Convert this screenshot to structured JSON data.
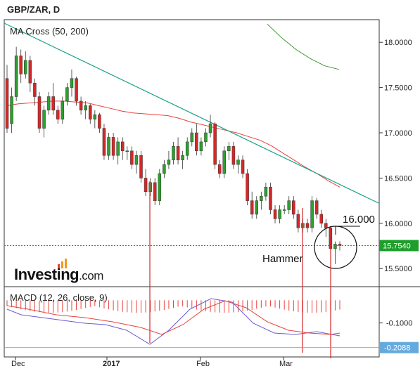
{
  "header": {
    "title": "GBP/ZAR, D"
  },
  "indicators": {
    "ma_label": "MA Cross (50, 200)",
    "macd_label": "MACD (12, 26, close, 9)"
  },
  "logo": {
    "brand": "Investing",
    "suffix": ".com"
  },
  "annotations": {
    "hammer": "Hammer",
    "level": "16.000"
  },
  "colors": {
    "up": "#2ca02c",
    "down": "#d62728",
    "ma50": "#e8423c",
    "ma200": "#3a9a2e",
    "trendline": "#1aa38a",
    "macd": "#6a5acd",
    "signal": "#e8423c",
    "price_tag": "#1e9e2a",
    "macd_tag": "#66aadd"
  },
  "chart_data": {
    "type": "candlestick",
    "symbol": "GBP/ZAR",
    "timeframe": "D",
    "price_axis": {
      "ticks": [
        "18.0000",
        "17.5000",
        "17.0000",
        "16.5000",
        "16.0000",
        "15.5000"
      ],
      "range": [
        15.3,
        18.25
      ]
    },
    "x_ticks": [
      "Dec",
      "2017",
      "Feb",
      "Mar"
    ],
    "last_price": "15.7540",
    "candles": [
      [
        17.6,
        17.75,
        17.0,
        17.05
      ],
      [
        17.1,
        17.5,
        17.0,
        17.4
      ],
      [
        17.4,
        17.95,
        17.35,
        17.85
      ],
      [
        17.85,
        17.92,
        17.55,
        17.65
      ],
      [
        17.65,
        17.9,
        17.6,
        17.8
      ],
      [
        17.8,
        17.85,
        17.45,
        17.55
      ],
      [
        17.55,
        17.6,
        17.3,
        17.4
      ],
      [
        17.4,
        17.45,
        17.0,
        17.05
      ],
      [
        17.05,
        17.3,
        16.95,
        17.25
      ],
      [
        17.25,
        17.45,
        17.2,
        17.4
      ],
      [
        17.4,
        17.55,
        17.2,
        17.25
      ],
      [
        17.25,
        17.3,
        17.1,
        17.15
      ],
      [
        17.15,
        17.4,
        17.1,
        17.35
      ],
      [
        17.35,
        17.55,
        17.3,
        17.5
      ],
      [
        17.5,
        17.7,
        17.4,
        17.6
      ],
      [
        17.6,
        17.62,
        17.3,
        17.35
      ],
      [
        17.35,
        17.4,
        17.2,
        17.25
      ],
      [
        17.25,
        17.35,
        17.15,
        17.3
      ],
      [
        17.3,
        17.32,
        17.1,
        17.15
      ],
      [
        17.15,
        17.25,
        17.05,
        17.2
      ],
      [
        17.2,
        17.22,
        17.0,
        17.05
      ],
      [
        17.05,
        17.1,
        16.7,
        16.75
      ],
      [
        16.75,
        17.0,
        16.7,
        16.95
      ],
      [
        16.95,
        17.0,
        16.7,
        16.75
      ],
      [
        16.75,
        16.95,
        16.65,
        16.9
      ],
      [
        16.9,
        16.95,
        16.7,
        16.8
      ],
      [
        16.8,
        16.85,
        16.7,
        16.8
      ],
      [
        16.8,
        16.85,
        16.6,
        16.65
      ],
      [
        16.65,
        16.8,
        16.55,
        16.75
      ],
      [
        16.75,
        16.8,
        16.45,
        16.5
      ],
      [
        16.5,
        16.6,
        16.3,
        16.35
      ],
      [
        16.35,
        16.5,
        16.3,
        16.45
      ],
      [
        16.45,
        16.5,
        16.2,
        16.25
      ],
      [
        16.25,
        16.6,
        16.2,
        16.55
      ],
      [
        16.55,
        16.7,
        16.5,
        16.65
      ],
      [
        16.65,
        16.8,
        16.6,
        16.7
      ],
      [
        16.7,
        16.9,
        16.65,
        16.85
      ],
      [
        16.85,
        16.95,
        16.65,
        16.7
      ],
      [
        16.7,
        16.8,
        16.6,
        16.75
      ],
      [
        16.75,
        16.95,
        16.7,
        16.9
      ],
      [
        16.9,
        17.05,
        16.85,
        17.0
      ],
      [
        17.0,
        17.1,
        16.75,
        16.8
      ],
      [
        16.8,
        16.95,
        16.75,
        16.9
      ],
      [
        16.9,
        17.05,
        16.85,
        17.0
      ],
      [
        17.0,
        17.2,
        16.95,
        17.1
      ],
      [
        17.1,
        17.12,
        16.6,
        16.65
      ],
      [
        16.65,
        16.7,
        16.5,
        16.55
      ],
      [
        16.55,
        16.85,
        16.5,
        16.8
      ],
      [
        16.8,
        16.9,
        16.7,
        16.85
      ],
      [
        16.85,
        16.9,
        16.6,
        16.65
      ],
      [
        16.65,
        16.75,
        16.55,
        16.7
      ],
      [
        16.7,
        16.75,
        16.5,
        16.55
      ],
      [
        16.55,
        16.6,
        16.2,
        16.25
      ],
      [
        16.25,
        16.35,
        16.05,
        16.1
      ],
      [
        16.1,
        16.3,
        16.05,
        16.25
      ],
      [
        16.25,
        16.35,
        16.15,
        16.3
      ],
      [
        16.3,
        16.45,
        16.25,
        16.4
      ],
      [
        16.4,
        16.45,
        16.1,
        16.15
      ],
      [
        16.15,
        16.2,
        16.0,
        16.05
      ],
      [
        16.05,
        16.2,
        16.0,
        16.15
      ],
      [
        16.15,
        16.2,
        16.1,
        16.15
      ],
      [
        16.15,
        16.3,
        16.1,
        16.25
      ],
      [
        16.25,
        16.3,
        16.05,
        16.1
      ],
      [
        16.1,
        16.15,
        15.9,
        15.95
      ],
      [
        15.95,
        16.05,
        15.9,
        16.0
      ],
      [
        16.0,
        16.05,
        15.9,
        15.95
      ],
      [
        15.95,
        16.3,
        15.9,
        16.25
      ],
      [
        16.25,
        16.28,
        16.05,
        16.1
      ],
      [
        16.1,
        16.15,
        15.95,
        16.0
      ],
      [
        16.0,
        16.05,
        15.85,
        15.95
      ],
      [
        15.95,
        15.97,
        15.7,
        15.72
      ],
      [
        15.72,
        15.8,
        15.55,
        15.77
      ],
      [
        15.77,
        15.8,
        15.7,
        15.754
      ]
    ],
    "ma50": [
      17.3,
      17.32,
      17.33,
      17.34,
      17.35,
      17.35,
      17.34,
      17.33,
      17.3,
      17.27,
      17.24,
      17.22,
      17.21,
      17.2,
      17.19,
      17.16,
      17.12,
      17.09,
      17.06,
      17.03,
      17.0,
      16.96,
      16.92,
      16.86,
      16.78,
      16.7,
      16.62,
      16.55,
      16.47,
      16.4
    ],
    "ma200": [
      18.2,
      18.05,
      17.92,
      17.82,
      17.74,
      17.7
    ],
    "macd": {
      "axis_ticks": [
        "-0.1000"
      ],
      "last_value": "-0.2088",
      "range": [
        -0.25,
        0.06
      ]
    }
  }
}
